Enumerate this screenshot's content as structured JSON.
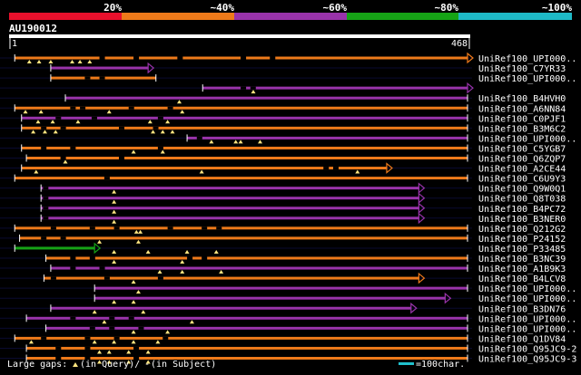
{
  "colors": {
    "background": "#000000",
    "text": "#ffffff",
    "band_red": "#e8102c",
    "band_orange": "#ee7a1a",
    "band_purple": "#9933aa",
    "band_green": "#16a316",
    "band_cyan": "#1eb9c6",
    "scale_bar": "#ffffff",
    "gap_marker": "#ffe680",
    "legend_bar": "#20c0cc",
    "row_line": "#0a0a30"
  },
  "identity_legend": [
    {
      "label": "20%",
      "color": "#e8102c"
    },
    {
      "label": "~40%",
      "color": "#ee7a1a"
    },
    {
      "label": "~60%",
      "color": "#9933aa"
    },
    {
      "label": "~80%",
      "color": "#16a316"
    },
    {
      "label": "~100%",
      "color": "#1eb9c6"
    }
  ],
  "query": {
    "id": "AU190012",
    "start_label": "1",
    "end_label": "468",
    "length": 468
  },
  "hits": [
    {
      "name": "UniRef100_UPI000..",
      "color": "orange",
      "start": 3,
      "end": 468,
      "arrow": true,
      "gaps": [
        90,
        125,
        170,
        235,
        265
      ],
      "tris": [
        18,
        28,
        40,
        62,
        70,
        80
      ]
    },
    {
      "name": "UniRef100_C7YR33",
      "color": "purple",
      "start": 40,
      "end": 140,
      "arrow": true,
      "gaps": [],
      "tris": []
    },
    {
      "name": "UniRef100_UPI000..",
      "color": "orange",
      "start": 40,
      "end": 148,
      "arrow": false,
      "gaps": [
        75,
        90
      ],
      "tris": []
    },
    {
      "name": "",
      "color": "purple",
      "start": 196,
      "end": 468,
      "arrow": true,
      "gaps": [
        235,
        245
      ],
      "tris": [
        248
      ]
    },
    {
      "name": "UniRef100_B4HVH0",
      "color": "purple",
      "start": 55,
      "end": 468,
      "arrow": false,
      "gaps": [],
      "tris": [
        172
      ]
    },
    {
      "name": "UniRef100_A6NN84",
      "color": "orange",
      "start": 3,
      "end": 468,
      "arrow": false,
      "gaps": [
        60,
        70,
        120,
        160
      ],
      "tris": [
        14,
        30,
        100,
        175
      ]
    },
    {
      "name": "UniRef100_C0PJF1",
      "color": "purple",
      "start": 10,
      "end": 468,
      "arrow": false,
      "gaps": [
        45,
        82,
        150
      ],
      "tris": [
        27,
        42,
        68,
        142,
        160
      ]
    },
    {
      "name": "UniRef100_B3M6C2",
      "color": "orange",
      "start": 10,
      "end": 468,
      "arrow": false,
      "gaps": [
        30,
        50,
        110,
        145
      ],
      "tris": [
        22,
        34,
        45,
        145,
        155,
        165
      ]
    },
    {
      "name": "UniRef100_UPI000..",
      "color": "purple",
      "start": 180,
      "end": 468,
      "arrow": false,
      "gaps": [
        190
      ],
      "tris": [
        205,
        230,
        235,
        255
      ]
    },
    {
      "name": "UniRef100_C5YGB7",
      "color": "orange",
      "start": 10,
      "end": 468,
      "arrow": false,
      "gaps": [
        30,
        60,
        150
      ],
      "tris": [
        125,
        155
      ]
    },
    {
      "name": "UniRef100_Q6ZQP7",
      "color": "orange",
      "start": 15,
      "end": 468,
      "arrow": false,
      "gaps": [
        50,
        110
      ],
      "tris": [
        55
      ]
    },
    {
      "name": "UniRef100_A2CE44",
      "color": "orange",
      "start": 10,
      "end": 385,
      "arrow": true,
      "gaps": [
        320,
        330
      ],
      "tris": [
        25,
        195,
        355
      ]
    },
    {
      "name": "UniRef100_C6U9Y3",
      "color": "orange",
      "start": 3,
      "end": 468,
      "arrow": false,
      "gaps": [
        95
      ],
      "tris": []
    },
    {
      "name": "UniRef100_Q9W0Q1",
      "color": "purple",
      "start": 30,
      "end": 418,
      "arrow": true,
      "gaps": [
        32
      ],
      "tris": [
        105
      ]
    },
    {
      "name": "UniRef100_Q8T038",
      "color": "purple",
      "start": 30,
      "end": 418,
      "arrow": true,
      "gaps": [
        32
      ],
      "tris": [
        105
      ]
    },
    {
      "name": "UniRef100_B4PC72",
      "color": "purple",
      "start": 30,
      "end": 418,
      "arrow": true,
      "gaps": [
        32
      ],
      "tris": [
        105
      ]
    },
    {
      "name": "UniRef100_B3NER0",
      "color": "purple",
      "start": 30,
      "end": 418,
      "arrow": true,
      "gaps": [
        32
      ],
      "tris": [
        105
      ]
    },
    {
      "name": "UniRef100_Q212G2",
      "color": "orange",
      "start": 3,
      "end": 468,
      "arrow": false,
      "gaps": [
        40,
        80,
        105,
        160,
        195,
        210
      ],
      "tris": [
        128,
        132
      ]
    },
    {
      "name": "UniRef100_P24152",
      "color": "orange",
      "start": 8,
      "end": 468,
      "arrow": false,
      "gaps": [
        30,
        50
      ],
      "tris": [
        90,
        130
      ]
    },
    {
      "name": "UniRef100_P33485",
      "color": "green",
      "start": 3,
      "end": 85,
      "arrow": true,
      "gaps": [],
      "tris": [
        105,
        140,
        180,
        210
      ]
    },
    {
      "name": "UniRef100_B3NC39",
      "color": "orange",
      "start": 35,
      "end": 468,
      "arrow": false,
      "gaps": [
        60,
        80,
        180,
        195
      ],
      "tris": [
        105,
        175
      ]
    },
    {
      "name": "UniRef100_A1B9K3",
      "color": "purple",
      "start": 40,
      "end": 468,
      "arrow": false,
      "gaps": [
        60,
        90
      ],
      "tris": [
        152,
        175,
        215
      ]
    },
    {
      "name": "UniRef100_B4LCV8",
      "color": "orange",
      "start": 33,
      "end": 418,
      "arrow": true,
      "gaps": [
        40,
        95,
        150
      ],
      "tris": [
        125
      ]
    },
    {
      "name": "UniRef100_UPI000..",
      "color": "purple",
      "start": 85,
      "end": 468,
      "arrow": false,
      "gaps": [],
      "tris": [
        130
      ]
    },
    {
      "name": "UniRef100_UPI000..",
      "color": "purple",
      "start": 85,
      "end": 445,
      "arrow": true,
      "gaps": [],
      "tris": [
        105,
        125
      ]
    },
    {
      "name": "UniRef100_B3DN76",
      "color": "purple",
      "start": 40,
      "end": 410,
      "arrow": true,
      "gaps": [],
      "tris": [
        85,
        135
      ]
    },
    {
      "name": "UniRef100_UPI000..",
      "color": "purple",
      "start": 15,
      "end": 468,
      "arrow": false,
      "gaps": [
        60,
        100,
        120
      ],
      "tris": [
        95,
        185
      ]
    },
    {
      "name": "UniRef100_UPI000..",
      "color": "purple",
      "start": 35,
      "end": 468,
      "arrow": false,
      "gaps": [
        80,
        100,
        130
      ],
      "tris": [
        125,
        160
      ]
    },
    {
      "name": "UniRef100_Q1DV84",
      "color": "orange",
      "start": 3,
      "end": 468,
      "arrow": false,
      "gaps": [
        30,
        75,
        105,
        155
      ],
      "tris": [
        20,
        85,
        105,
        125,
        150
      ]
    },
    {
      "name": "UniRef100_Q95JC9-2",
      "color": "orange",
      "start": 15,
      "end": 468,
      "arrow": false,
      "gaps": [
        45,
        75,
        125
      ],
      "tris": [
        90,
        100,
        120,
        140
      ]
    },
    {
      "name": "UniRef100_Q95JC9-3",
      "color": "orange",
      "start": 15,
      "end": 468,
      "arrow": false,
      "gaps": [
        45,
        75,
        125
      ],
      "tris": [
        90,
        100,
        120,
        140
      ]
    }
  ],
  "footer": {
    "large_gaps_label": "Large gaps:",
    "in_query_label": "(in Query)/",
    "gap_dash": "-",
    "in_subject_label": "(in Subject)",
    "scale_label": "=100char."
  }
}
